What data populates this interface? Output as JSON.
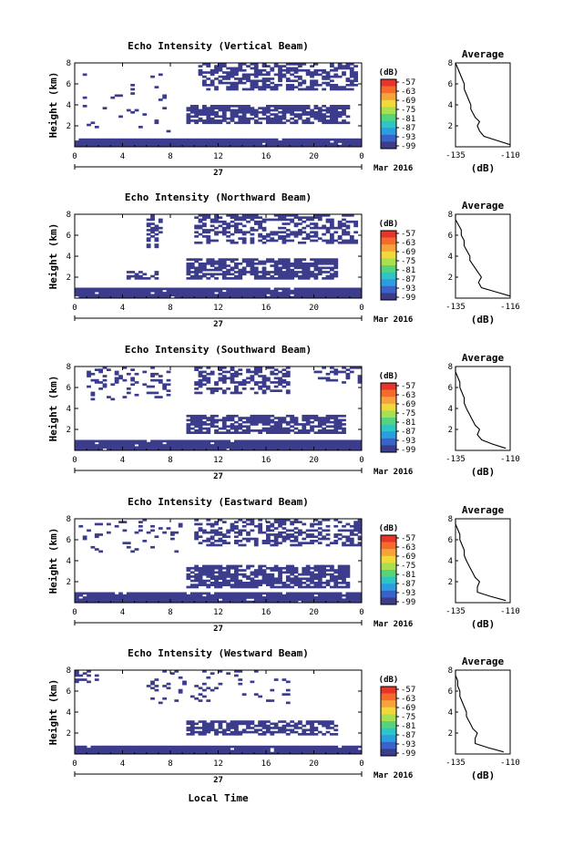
{
  "figure": {
    "bottom_xlabel": "Local Time",
    "date_label": "Mar 2016",
    "day_label": "27"
  },
  "colorbar": {
    "unit": "(dB)",
    "ticks": [
      "-57",
      "-63",
      "-69",
      "-75",
      "-81",
      "-87",
      "-93",
      "-99"
    ],
    "colors": [
      "#e8352a",
      "#f66b2c",
      "#f7a23a",
      "#f2d93b",
      "#a9e04f",
      "#54d57c",
      "#2ec5c5",
      "#2a9ee0",
      "#3a63c9",
      "#3c3c8c"
    ]
  },
  "panel_common": {
    "ylabel": "Height (km)",
    "yticks": [
      "2",
      "4",
      "6",
      "8"
    ],
    "xticks": [
      "0",
      "4",
      "8",
      "12",
      "16",
      "20",
      "0"
    ],
    "profile_title": "Average",
    "profile_xlabel": "(dB)"
  },
  "panels": [
    {
      "title": "Echo Intensity (Vertical Beam)",
      "profile_xticks": [
        "-135",
        "-110"
      ]
    },
    {
      "title": "Echo Intensity (Northward Beam)",
      "profile_xticks": [
        "-135",
        "-116"
      ]
    },
    {
      "title": "Echo Intensity (Southward Beam)",
      "profile_xticks": [
        "-135",
        "-110"
      ]
    },
    {
      "title": "Echo Intensity (Eastward Beam)",
      "profile_xticks": [
        "-135",
        "-110"
      ]
    },
    {
      "title": "Echo Intensity (Westward Beam)",
      "profile_xticks": [
        "-135",
        "-110"
      ]
    }
  ],
  "chart_data": [
    {
      "type": "heatmap",
      "title": "Echo Intensity (Vertical Beam)",
      "ylabel": "Height (km)",
      "xlim": [
        0,
        24
      ],
      "ylim": [
        0,
        8
      ],
      "colorbar_range_db": [
        -99,
        -57
      ],
      "echo_layers": [
        {
          "t_start": 0,
          "t_end": 24,
          "h_low": 0.2,
          "h_high": 0.7,
          "density": 0.97
        },
        {
          "t_start": 9.5,
          "t_end": 23,
          "h_low": 2.3,
          "h_high": 3.8,
          "density": 0.75
        },
        {
          "t_start": 10.5,
          "t_end": 23.5,
          "h_low": 5.6,
          "h_high": 8.0,
          "density": 0.55
        },
        {
          "t_start": 0.5,
          "t_end": 8,
          "h_low": 1.0,
          "h_high": 7.0,
          "density": 0.03
        }
      ],
      "profile": {
        "title": "Average",
        "xlabel": "(dB)",
        "xlim": [
          -135,
          -110
        ],
        "ylim": [
          0,
          8
        ],
        "h": [
          0.2,
          0.6,
          1.0,
          1.5,
          2.0,
          2.4,
          2.8,
          3.2,
          3.6,
          4.0,
          4.5,
          5.0,
          5.5,
          6.0,
          6.5,
          7.0,
          7.5,
          8.0
        ],
        "db": [
          -110,
          -116,
          -122,
          -124,
          -125,
          -124,
          -126,
          -127,
          -128,
          -128,
          -129,
          -130,
          -131,
          -131,
          -132,
          -133,
          -134,
          -135
        ]
      }
    },
    {
      "type": "heatmap",
      "title": "Echo Intensity (Northward Beam)",
      "ylabel": "Height (km)",
      "xlim": [
        0,
        24
      ],
      "ylim": [
        0,
        8
      ],
      "colorbar_range_db": [
        -99,
        -57
      ],
      "echo_layers": [
        {
          "t_start": 0,
          "t_end": 24,
          "h_low": 0.2,
          "h_high": 0.9,
          "density": 0.97
        },
        {
          "t_start": 9.5,
          "t_end": 22,
          "h_low": 2.0,
          "h_high": 3.6,
          "density": 0.75
        },
        {
          "t_start": 10,
          "t_end": 23.5,
          "h_low": 5.3,
          "h_high": 8.0,
          "density": 0.5
        },
        {
          "t_start": 6.0,
          "t_end": 7.2,
          "h_low": 5.0,
          "h_high": 8.0,
          "density": 0.5
        },
        {
          "t_start": 4.5,
          "t_end": 7.0,
          "h_low": 2.0,
          "h_high": 2.5,
          "density": 0.6
        }
      ],
      "profile": {
        "title": "Average",
        "xlabel": "(dB)",
        "xlim": [
          -135,
          -116
        ],
        "ylim": [
          0,
          8
        ],
        "h": [
          0.2,
          0.6,
          1.0,
          1.5,
          2.0,
          2.4,
          2.8,
          3.2,
          3.6,
          4.0,
          4.5,
          5.0,
          5.5,
          6.0,
          6.5,
          7.0,
          7.5,
          8.0
        ],
        "db": [
          -116,
          -121,
          -126,
          -127,
          -126,
          -127,
          -128,
          -129,
          -130,
          -130,
          -131,
          -132,
          -132,
          -133,
          -133,
          -134,
          -135,
          -135
        ]
      }
    },
    {
      "type": "heatmap",
      "title": "Echo Intensity (Southward Beam)",
      "ylabel": "Height (km)",
      "xlim": [
        0,
        24
      ],
      "ylim": [
        0,
        8
      ],
      "colorbar_range_db": [
        -99,
        -57
      ],
      "echo_layers": [
        {
          "t_start": 0,
          "t_end": 24,
          "h_low": 0.2,
          "h_high": 0.9,
          "density": 0.97
        },
        {
          "t_start": 9.5,
          "t_end": 22.5,
          "h_low": 1.8,
          "h_high": 3.3,
          "density": 0.7
        },
        {
          "t_start": 10,
          "t_end": 18,
          "h_low": 5.6,
          "h_high": 8.0,
          "density": 0.45
        },
        {
          "t_start": 1,
          "t_end": 8,
          "h_low": 5.0,
          "h_high": 8.0,
          "density": 0.2
        },
        {
          "t_start": 20,
          "t_end": 24,
          "h_low": 6.5,
          "h_high": 8.0,
          "density": 0.4
        }
      ],
      "profile": {
        "title": "Average",
        "xlabel": "(dB)",
        "xlim": [
          -135,
          -110
        ],
        "ylim": [
          0,
          8
        ],
        "h": [
          0.2,
          0.6,
          1.0,
          1.5,
          2.0,
          2.4,
          2.8,
          3.2,
          3.6,
          4.0,
          4.5,
          5.0,
          5.5,
          6.0,
          6.5,
          7.0,
          7.5,
          8.0
        ],
        "db": [
          -112,
          -118,
          -123,
          -125,
          -124,
          -126,
          -127,
          -128,
          -129,
          -130,
          -131,
          -131,
          -132,
          -133,
          -133,
          -134,
          -135,
          -135
        ]
      }
    },
    {
      "type": "heatmap",
      "title": "Echo Intensity (Eastward Beam)",
      "ylabel": "Height (km)",
      "xlim": [
        0,
        24
      ],
      "ylim": [
        0,
        8
      ],
      "colorbar_range_db": [
        -99,
        -57
      ],
      "echo_layers": [
        {
          "t_start": 0,
          "t_end": 24,
          "h_low": 0.2,
          "h_high": 0.8,
          "density": 0.97
        },
        {
          "t_start": 9.5,
          "t_end": 23,
          "h_low": 1.5,
          "h_high": 3.5,
          "density": 0.75
        },
        {
          "t_start": 10,
          "t_end": 24,
          "h_low": 5.5,
          "h_high": 8.0,
          "density": 0.45
        },
        {
          "t_start": 0.5,
          "t_end": 9,
          "h_low": 5.0,
          "h_high": 8.0,
          "density": 0.08
        }
      ],
      "profile": {
        "title": "Average",
        "xlabel": "(dB)",
        "xlim": [
          -135,
          -110
        ],
        "ylim": [
          0,
          8
        ],
        "h": [
          0.2,
          0.6,
          1.0,
          1.5,
          2.0,
          2.4,
          2.8,
          3.2,
          3.6,
          4.0,
          4.5,
          5.0,
          5.5,
          6.0,
          6.5,
          7.0,
          7.5,
          8.0
        ],
        "db": [
          -112,
          -119,
          -125,
          -125,
          -124,
          -126,
          -127,
          -128,
          -129,
          -130,
          -131,
          -131,
          -132,
          -133,
          -133,
          -134,
          -135,
          -135
        ]
      }
    },
    {
      "type": "heatmap",
      "title": "Echo Intensity (Westward Beam)",
      "ylabel": "Height (km)",
      "xlim": [
        0,
        24
      ],
      "ylim": [
        0,
        8
      ],
      "colorbar_range_db": [
        -99,
        -57
      ],
      "echo_layers": [
        {
          "t_start": 0,
          "t_end": 24,
          "h_low": 0.2,
          "h_high": 0.7,
          "density": 0.97
        },
        {
          "t_start": 9.5,
          "t_end": 22,
          "h_low": 1.9,
          "h_high": 3.1,
          "density": 0.65
        },
        {
          "t_start": 6,
          "t_end": 18,
          "h_low": 5.0,
          "h_high": 8.0,
          "density": 0.12
        },
        {
          "t_start": 0,
          "t_end": 2,
          "h_low": 7.0,
          "h_high": 8.0,
          "density": 0.3
        }
      ],
      "profile": {
        "title": "Average",
        "xlabel": "(dB)",
        "xlim": [
          -135,
          -110
        ],
        "ylim": [
          0,
          8
        ],
        "h": [
          0.2,
          0.6,
          1.0,
          1.5,
          2.0,
          2.4,
          2.8,
          3.2,
          3.6,
          4.0,
          4.5,
          5.0,
          5.5,
          6.0,
          6.5,
          7.0,
          7.5,
          8.0
        ],
        "db": [
          -113,
          -120,
          -126,
          -126,
          -125,
          -127,
          -128,
          -129,
          -130,
          -130,
          -131,
          -132,
          -133,
          -133,
          -134,
          -134,
          -135,
          -135
        ]
      }
    }
  ]
}
